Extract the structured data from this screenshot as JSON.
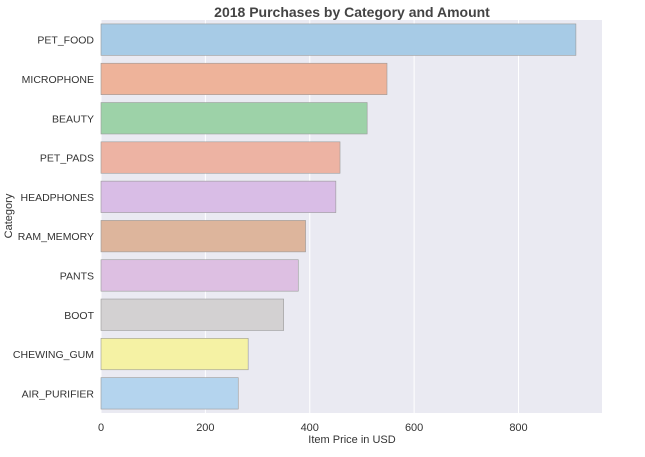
{
  "chart_data": {
    "type": "bar",
    "orientation": "horizontal",
    "title": "2018 Purchases by Category and Amount",
    "xlabel": "Item Price in USD",
    "ylabel": "Category",
    "categories": [
      "PET_FOOD",
      "MICROPHONE",
      "BEAUTY",
      "PET_PADS",
      "HEADPHONES",
      "RAM_MEMORY",
      "PANTS",
      "BOOT",
      "CHEWING_GUM",
      "AIR_PURIFIER"
    ],
    "values": [
      910,
      548,
      510,
      458,
      450,
      392,
      378,
      350,
      282,
      263
    ],
    "colors": [
      "#a7cbe6",
      "#eeb39a",
      "#9dd2a8",
      "#edb3a3",
      "#d9bde6",
      "#ddb59c",
      "#ddbfe2",
      "#d3d1d2",
      "#f5f2a4",
      "#b4d4ee"
    ],
    "xlim": [
      0,
      960
    ],
    "xticks": [
      0,
      200,
      400,
      600,
      800
    ],
    "grid": true,
    "background": "#eaeaf2",
    "legend": "none"
  }
}
